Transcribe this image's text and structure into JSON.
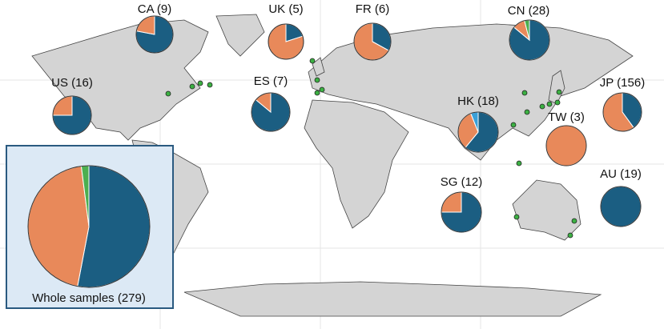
{
  "slice_colors": [
    "#1b5e82",
    "#e8895a",
    "#4caf50",
    "#3aa0d8"
  ],
  "pies": [
    {
      "label": "CA (9)",
      "values": [
        78,
        22,
        0,
        0
      ]
    },
    {
      "label": "UK (5)",
      "values": [
        20,
        80,
        0,
        0
      ]
    },
    {
      "label": "FR (6)",
      "values": [
        33,
        67,
        0,
        0
      ]
    },
    {
      "label": "CN (28)",
      "values": [
        86,
        10,
        4,
        0
      ]
    },
    {
      "label": "US (16)",
      "values": [
        75,
        25,
        0,
        0
      ]
    },
    {
      "label": "ES (7)",
      "values": [
        86,
        14,
        0,
        0
      ]
    },
    {
      "label": "HK (18)",
      "values": [
        61,
        33,
        0,
        6
      ]
    },
    {
      "label": "JP (156)",
      "values": [
        40,
        60,
        0,
        0
      ]
    },
    {
      "label": "TW (3)",
      "values": [
        0,
        100,
        0,
        0
      ]
    },
    {
      "label": "SG (12)",
      "values": [
        75,
        25,
        0,
        0
      ]
    },
    {
      "label": "AU (19)",
      "values": [
        100,
        0,
        0,
        0
      ]
    }
  ],
  "whole": {
    "label": "Whole samples (279)",
    "values": [
      53,
      45,
      2,
      0
    ]
  }
}
